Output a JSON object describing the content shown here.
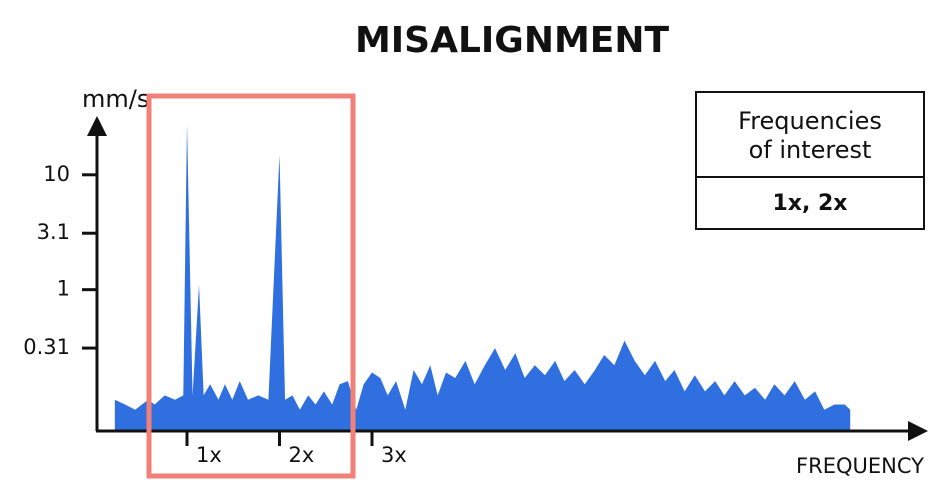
{
  "chart_data": {
    "type": "area",
    "title": "MISALIGNMENT",
    "y_label": "mm/s",
    "x_label": "FREQUENCY",
    "yscale": "log",
    "color": "#2f6fe0",
    "xlim": [
      0,
      9
    ],
    "ylim": [
      0.06,
      30
    ],
    "yticks": [
      0.31,
      1,
      3.1,
      10
    ],
    "xticks": [
      {
        "value": 1,
        "label": "1x"
      },
      {
        "value": 2,
        "label": "2x"
      },
      {
        "value": 3,
        "label": "3x"
      }
    ],
    "annotation": {
      "title": [
        "Frequencies",
        "of interest"
      ],
      "text": "1x, 2x"
    },
    "x": [
      0.22,
      0.33,
      0.44,
      0.58,
      0.65,
      0.76,
      0.87,
      0.96,
      1.0,
      1.06,
      1.13,
      1.18,
      1.25,
      1.34,
      1.41,
      1.49,
      1.57,
      1.66,
      1.77,
      1.88,
      2.0,
      2.06,
      2.14,
      2.22,
      2.31,
      2.39,
      2.48,
      2.57,
      2.65,
      2.74,
      2.83,
      2.91,
      3.0,
      3.09,
      3.17,
      3.26,
      3.36,
      3.45,
      3.54,
      3.63,
      3.71,
      3.8,
      3.9,
      4.01,
      4.11,
      4.22,
      4.33,
      4.44,
      4.55,
      4.65,
      4.76,
      4.87,
      4.98,
      5.08,
      5.19,
      5.3,
      5.41,
      5.51,
      5.62,
      5.73,
      5.84,
      5.95,
      6.06,
      6.17,
      6.27,
      6.38,
      6.49,
      6.6,
      6.71,
      6.81,
      6.92,
      7.03,
      7.14,
      7.25,
      7.35,
      7.46,
      7.57,
      7.68,
      7.79,
      7.89,
      8.0,
      8.11,
      8.17
    ],
    "values": [
      0.11,
      0.1,
      0.09,
      0.11,
      0.1,
      0.12,
      0.11,
      0.12,
      28,
      0.12,
      1.1,
      0.12,
      0.15,
      0.11,
      0.15,
      0.11,
      0.16,
      0.11,
      0.12,
      0.11,
      15,
      0.11,
      0.12,
      0.09,
      0.12,
      0.1,
      0.13,
      0.1,
      0.15,
      0.16,
      0.09,
      0.15,
      0.19,
      0.17,
      0.12,
      0.16,
      0.09,
      0.2,
      0.15,
      0.22,
      0.12,
      0.19,
      0.17,
      0.24,
      0.15,
      0.22,
      0.31,
      0.2,
      0.28,
      0.17,
      0.22,
      0.18,
      0.24,
      0.16,
      0.2,
      0.15,
      0.2,
      0.27,
      0.22,
      0.36,
      0.24,
      0.18,
      0.24,
      0.16,
      0.2,
      0.13,
      0.18,
      0.13,
      0.16,
      0.12,
      0.16,
      0.12,
      0.14,
      0.11,
      0.15,
      0.12,
      0.16,
      0.11,
      0.13,
      0.09,
      0.1,
      0.1,
      0.09
    ]
  }
}
